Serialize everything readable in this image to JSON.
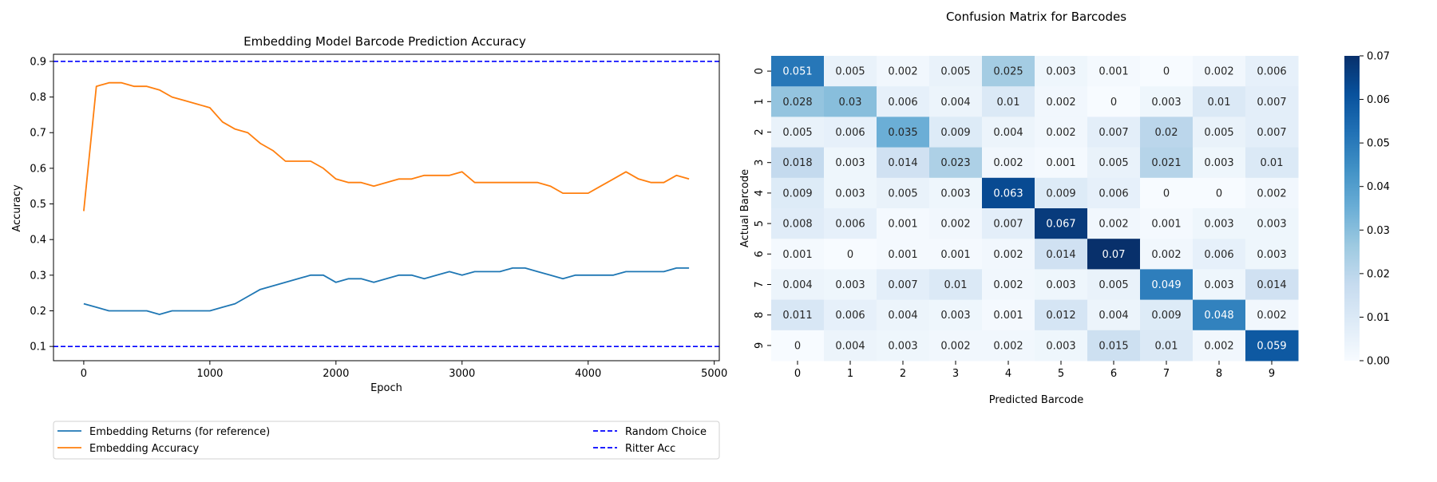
{
  "chart_data": [
    {
      "type": "line",
      "title": "Embedding Model Barcode Prediction Accuracy",
      "xlabel": "Epoch",
      "ylabel": "Accuracy",
      "xlim": [
        -240,
        5040
      ],
      "ylim": [
        0.06,
        0.92
      ],
      "xticks": [
        0,
        1000,
        2000,
        3000,
        4000,
        5000
      ],
      "yticks": [
        0.1,
        0.2,
        0.3,
        0.4,
        0.5,
        0.6,
        0.7,
        0.8,
        0.9
      ],
      "grid": false,
      "legend_placement": "below-plot",
      "series": [
        {
          "name": "Embedding Returns (for reference)",
          "color": "#1f77b4",
          "style": "solid",
          "x": [
            0,
            100,
            200,
            300,
            400,
            500,
            600,
            700,
            800,
            900,
            1000,
            1100,
            1200,
            1300,
            1400,
            1500,
            1600,
            1700,
            1800,
            1900,
            2000,
            2100,
            2200,
            2300,
            2400,
            2500,
            2600,
            2700,
            2800,
            2900,
            3000,
            3100,
            3200,
            3300,
            3400,
            3500,
            3600,
            3700,
            3800,
            3900,
            4000,
            4100,
            4200,
            4300,
            4400,
            4500,
            4600,
            4700,
            4800
          ],
          "y": [
            0.22,
            0.21,
            0.2,
            0.2,
            0.2,
            0.2,
            0.19,
            0.2,
            0.2,
            0.2,
            0.2,
            0.21,
            0.22,
            0.24,
            0.26,
            0.27,
            0.28,
            0.29,
            0.3,
            0.3,
            0.28,
            0.29,
            0.29,
            0.28,
            0.29,
            0.3,
            0.3,
            0.29,
            0.3,
            0.31,
            0.3,
            0.31,
            0.31,
            0.31,
            0.32,
            0.32,
            0.31,
            0.3,
            0.29,
            0.3,
            0.3,
            0.3,
            0.3,
            0.31,
            0.31,
            0.31,
            0.31,
            0.32,
            0.32
          ]
        },
        {
          "name": "Embedding Accuracy",
          "color": "#ff7f0e",
          "style": "solid",
          "x": [
            0,
            100,
            200,
            300,
            400,
            500,
            600,
            700,
            800,
            900,
            1000,
            1100,
            1200,
            1300,
            1400,
            1500,
            1600,
            1700,
            1800,
            1900,
            2000,
            2100,
            2200,
            2300,
            2400,
            2500,
            2600,
            2700,
            2800,
            2900,
            3000,
            3100,
            3200,
            3300,
            3400,
            3500,
            3600,
            3700,
            3800,
            3900,
            4000,
            4100,
            4200,
            4300,
            4400,
            4500,
            4600,
            4700,
            4800
          ],
          "y": [
            0.48,
            0.83,
            0.84,
            0.84,
            0.83,
            0.83,
            0.82,
            0.8,
            0.79,
            0.78,
            0.77,
            0.73,
            0.71,
            0.7,
            0.67,
            0.65,
            0.62,
            0.62,
            0.62,
            0.6,
            0.57,
            0.56,
            0.56,
            0.55,
            0.56,
            0.57,
            0.57,
            0.58,
            0.58,
            0.58,
            0.59,
            0.56,
            0.56,
            0.56,
            0.56,
            0.56,
            0.56,
            0.55,
            0.53,
            0.53,
            0.53,
            0.55,
            0.57,
            0.59,
            0.57,
            0.56,
            0.56,
            0.58,
            0.57
          ]
        },
        {
          "name": "Random Choice",
          "color": "#0000ff",
          "style": "dashed",
          "y_constant": 0.1
        },
        {
          "name": "Ritter Acc",
          "color": "#0000ff",
          "style": "dashed",
          "y_constant": 0.9
        }
      ]
    },
    {
      "type": "heatmap",
      "title": "Confusion Matrix for Barcodes",
      "xlabel": "Predicted Barcode",
      "ylabel": "Actual Barcode",
      "x_categories": [
        "0",
        "1",
        "2",
        "3",
        "4",
        "5",
        "6",
        "7",
        "8",
        "9"
      ],
      "y_categories": [
        "0",
        "1",
        "2",
        "3",
        "4",
        "5",
        "6",
        "7",
        "8",
        "9"
      ],
      "colormap": "Blues",
      "vmin": 0,
      "vmax": 0.07,
      "colorbar_ticks": [
        "0.00",
        "0.01",
        "0.02",
        "0.03",
        "0.04",
        "0.05",
        "0.06",
        "0.07"
      ],
      "values": [
        [
          0.051,
          0.005,
          0.002,
          0.005,
          0.025,
          0.003,
          0.001,
          0,
          0.002,
          0.006
        ],
        [
          0.028,
          0.03,
          0.006,
          0.004,
          0.01,
          0.002,
          0,
          0.003,
          0.01,
          0.007
        ],
        [
          0.005,
          0.006,
          0.035,
          0.009,
          0.004,
          0.002,
          0.007,
          0.02,
          0.005,
          0.007
        ],
        [
          0.018,
          0.003,
          0.014,
          0.023,
          0.002,
          0.001,
          0.005,
          0.021,
          0.003,
          0.01
        ],
        [
          0.009,
          0.003,
          0.005,
          0.003,
          0.063,
          0.009,
          0.006,
          0,
          0,
          0.002
        ],
        [
          0.008,
          0.006,
          0.001,
          0.002,
          0.007,
          0.067,
          0.002,
          0.001,
          0.003,
          0.003
        ],
        [
          0.001,
          0,
          0.001,
          0.001,
          0.002,
          0.014,
          0.07,
          0.002,
          0.006,
          0.003
        ],
        [
          0.004,
          0.003,
          0.007,
          0.01,
          0.002,
          0.003,
          0.005,
          0.049,
          0.003,
          0.014
        ],
        [
          0.011,
          0.006,
          0.004,
          0.003,
          0.001,
          0.012,
          0.004,
          0.009,
          0.048,
          0.002
        ],
        [
          0,
          0.004,
          0.003,
          0.002,
          0.002,
          0.003,
          0.015,
          0.01,
          0.002,
          0.059
        ]
      ]
    }
  ]
}
